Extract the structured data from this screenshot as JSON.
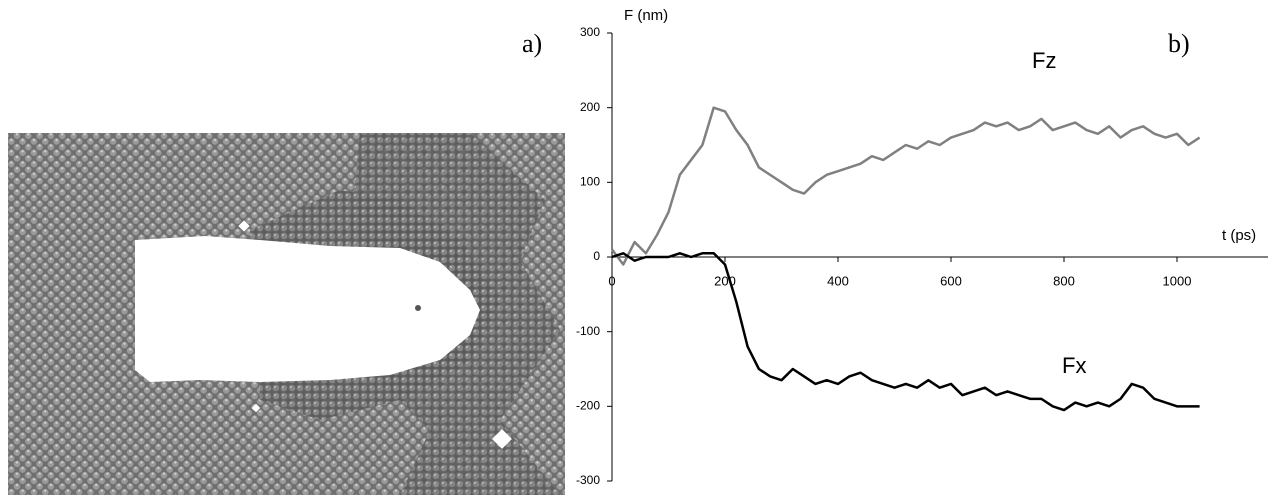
{
  "chart_data": {
    "type": "line",
    "panel_labels": [
      "a)",
      "b)"
    ],
    "ylabel": "F (nm)",
    "xlabel": "t (ps)",
    "x": [
      0,
      20,
      40,
      60,
      80,
      100,
      120,
      140,
      160,
      180,
      200,
      220,
      240,
      260,
      280,
      300,
      320,
      340,
      360,
      380,
      400,
      420,
      440,
      460,
      480,
      500,
      520,
      540,
      560,
      580,
      600,
      620,
      640,
      660,
      680,
      700,
      720,
      740,
      760,
      780,
      800,
      820,
      840,
      860,
      880,
      900,
      920,
      940,
      960,
      980,
      1000,
      1020,
      1040
    ],
    "series": [
      {
        "name": "Fz",
        "color": "#808080",
        "values": [
          10,
          -10,
          20,
          5,
          30,
          60,
          110,
          130,
          150,
          200,
          195,
          170,
          150,
          120,
          110,
          100,
          90,
          85,
          100,
          110,
          115,
          120,
          125,
          135,
          130,
          140,
          150,
          145,
          155,
          150,
          160,
          165,
          170,
          180,
          175,
          180,
          170,
          175,
          185,
          170,
          175,
          180,
          170,
          165,
          175,
          160,
          170,
          175,
          165,
          160,
          165,
          150,
          160
        ]
      },
      {
        "name": "Fx",
        "color": "#000000",
        "values": [
          0,
          5,
          -5,
          0,
          0,
          0,
          5,
          0,
          5,
          5,
          -10,
          -60,
          -120,
          -150,
          -160,
          -165,
          -150,
          -160,
          -170,
          -165,
          -170,
          -160,
          -155,
          -165,
          -170,
          -175,
          -170,
          -175,
          -165,
          -175,
          -170,
          -185,
          -180,
          -175,
          -185,
          -180,
          -185,
          -190,
          -190,
          -200,
          -205,
          -195,
          -200,
          -195,
          -200,
          -190,
          -170,
          -175,
          -190,
          -195,
          -200,
          -200,
          -200
        ]
      }
    ],
    "xlim": [
      0,
      1000
    ],
    "xticks": [
      0,
      200,
      400,
      600,
      800,
      1000
    ],
    "ylim": [
      -300,
      300
    ],
    "yticks": [
      -300,
      -200,
      -100,
      0,
      100,
      200,
      300
    ]
  }
}
